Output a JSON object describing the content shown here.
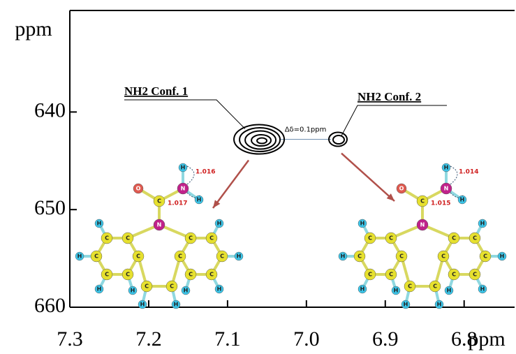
{
  "chart_data": {
    "type": "nmr2d",
    "y_label": "ppm",
    "x_label": "ppm",
    "xlim": [
      7.3,
      6.736
    ],
    "xticks": [
      7.3,
      7.2,
      7.1,
      {
        "value": 7,
        "label": "7.0"
      },
      6.9,
      6.8
    ],
    "ylim": [
      660,
      629.6
    ],
    "yticks": [
      640,
      650,
      660
    ],
    "contour_color": "#000000",
    "arrow_color": "#b0504a",
    "peaks": [
      {
        "label": "NH2 Conf. 1",
        "x": 7.06,
        "y": 642.8
      },
      {
        "label": "NH2 Conf. 2",
        "x": 6.96,
        "y": 642.8
      }
    ],
    "delta_label": "Δδ=0.1ppm",
    "molecules": [
      {
        "atoms": [
          "N",
          "C",
          "O",
          "N",
          "H",
          "H",
          "C",
          "C",
          "C",
          "C",
          "C",
          "C",
          "C",
          "C",
          "C",
          "C",
          "C",
          "C",
          "C",
          "C",
          "H",
          "H",
          "H",
          "H",
          "H",
          "H",
          "H",
          "H",
          "H",
          "H"
        ],
        "bond_lengths": [
          1.016,
          1.017
        ]
      },
      {
        "atoms": [
          "N",
          "C",
          "O",
          "N",
          "H",
          "H",
          "C",
          "C",
          "C",
          "C",
          "C",
          "C",
          "C",
          "C",
          "C",
          "C",
          "C",
          "C",
          "C",
          "C",
          "H",
          "H",
          "H",
          "H",
          "H",
          "H",
          "H",
          "H",
          "H",
          "H"
        ],
        "bond_lengths": [
          1.014,
          1.015
        ]
      }
    ]
  }
}
